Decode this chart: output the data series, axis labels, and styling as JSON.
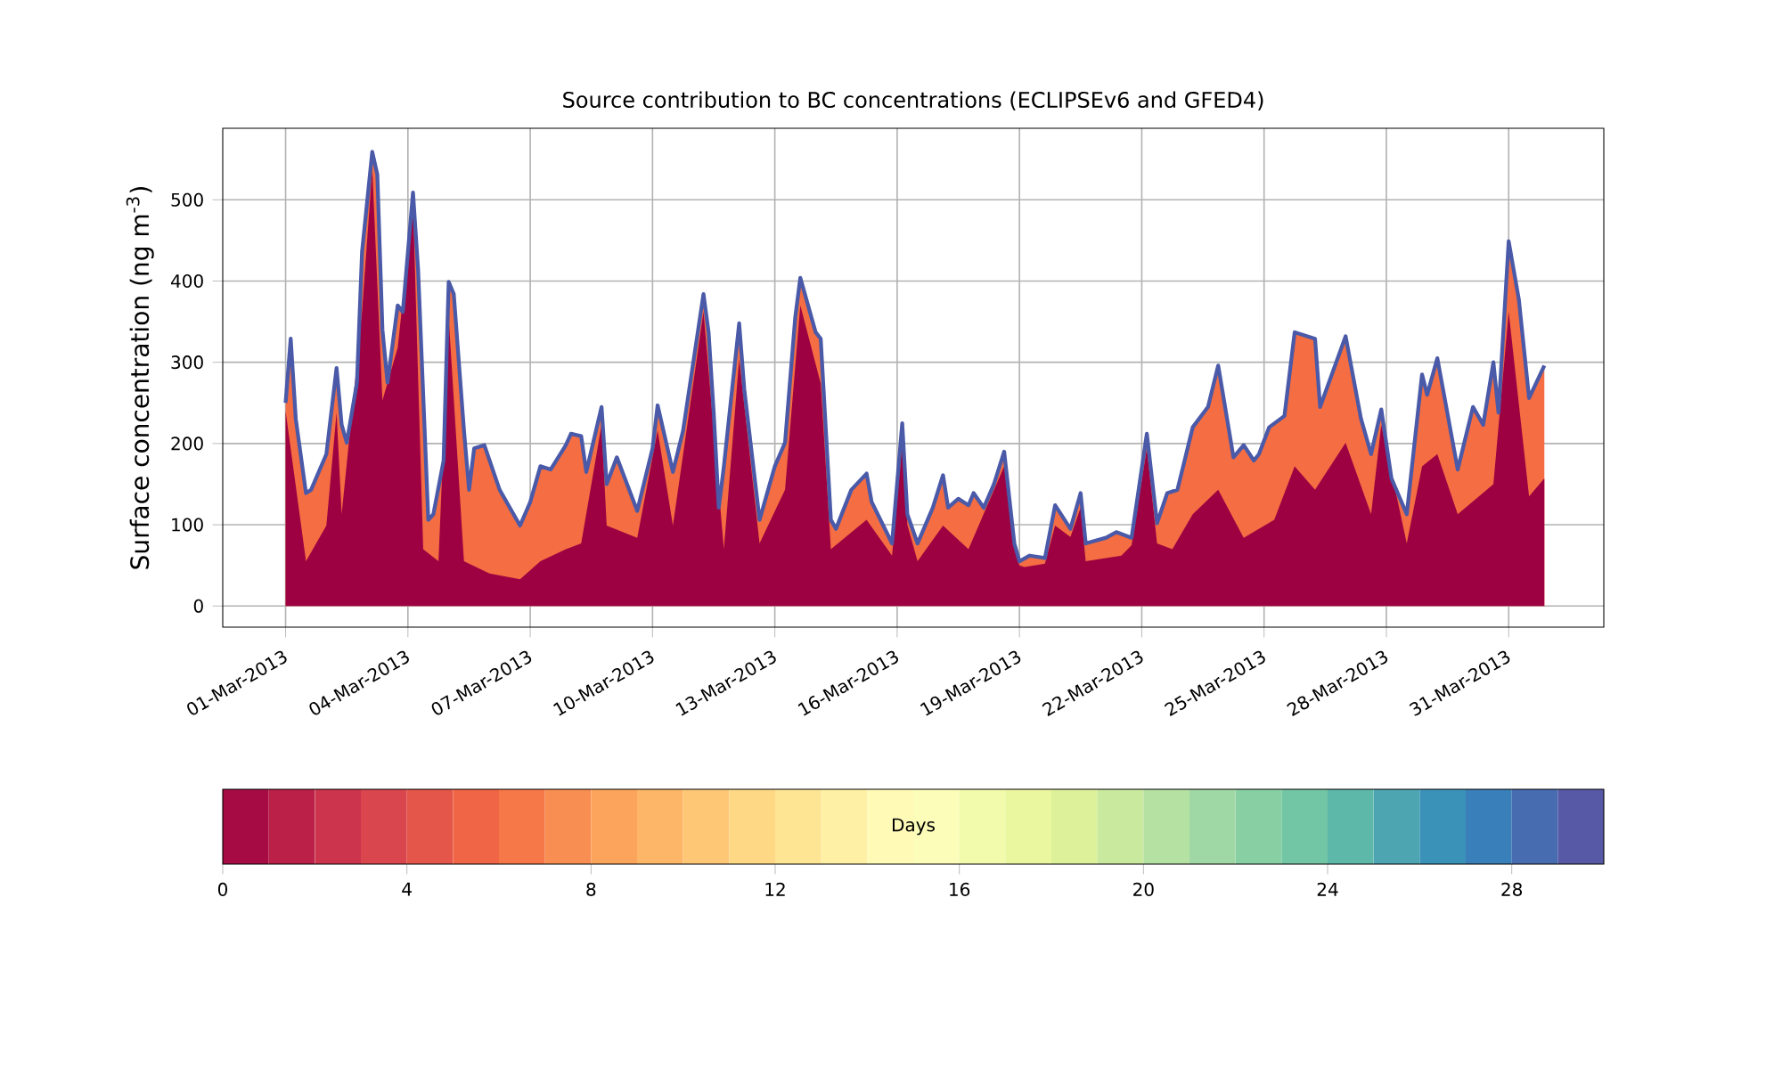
{
  "chart_data": {
    "type": "area",
    "title": "Source contribution to BC concentrations (ECLIPSEv6 and GFED4)",
    "ylabel": "Surface concentration (ng m$^{-3}$)",
    "xlim": [
      "2013-02-27T11:00",
      "2013-04-02T08:00"
    ],
    "xticks": [
      {
        "value": "2013-03-01",
        "label": "01-Mar-2013"
      },
      {
        "value": "2013-03-04",
        "label": "04-Mar-2013"
      },
      {
        "value": "2013-03-07",
        "label": "07-Mar-2013"
      },
      {
        "value": "2013-03-10",
        "label": "10-Mar-2013"
      },
      {
        "value": "2013-03-13",
        "label": "13-Mar-2013"
      },
      {
        "value": "2013-03-16",
        "label": "16-Mar-2013"
      },
      {
        "value": "2013-03-19",
        "label": "19-Mar-2013"
      },
      {
        "value": "2013-03-22",
        "label": "22-Mar-2013"
      },
      {
        "value": "2013-03-25",
        "label": "25-Mar-2013"
      },
      {
        "value": "2013-03-28",
        "label": "28-Mar-2013"
      },
      {
        "value": "2013-03-31",
        "label": "31-Mar-2013"
      }
    ],
    "ylim": [
      -26,
      588
    ],
    "yticks": [
      0,
      100,
      200,
      300,
      400,
      500
    ],
    "grid": true,
    "clabel": "Days",
    "clim": [
      0,
      30
    ],
    "cticks": [
      0,
      4,
      8,
      12,
      16,
      20,
      24,
      28
    ],
    "series": [
      {
        "color": "#f46d43",
        "x": [
          "2013-03-01T00:00",
          "2013-03-01T03:00",
          "2013-03-01T06:00",
          "2013-03-01T12:00",
          "2013-03-01T15:00",
          "2013-03-02T00:00",
          "2013-03-02T06:00",
          "2013-03-02T09:00",
          "2013-03-02T12:00",
          "2013-03-02T18:00",
          "2013-03-02T21:00",
          "2013-03-03T03:00",
          "2013-03-03T06:00",
          "2013-03-03T09:00",
          "2013-03-03T12:00",
          "2013-03-03T18:00",
          "2013-03-03T21:00",
          "2013-03-04T03:00",
          "2013-03-04T06:00",
          "2013-03-04T12:00",
          "2013-03-04T15:00",
          "2013-03-04T21:00",
          "2013-03-05T00:00",
          "2013-03-05T03:00",
          "2013-03-05T09:00",
          "2013-03-05T12:00",
          "2013-03-05T15:00",
          "2013-03-05T21:00",
          "2013-03-06T06:00",
          "2013-03-06T18:00",
          "2013-03-07T00:00",
          "2013-03-07T06:00",
          "2013-03-07T12:00",
          "2013-03-07T21:00",
          "2013-03-08T00:00",
          "2013-03-08T06:00",
          "2013-03-08T09:00",
          "2013-03-08T18:00",
          "2013-03-08T21:00",
          "2013-03-09T03:00",
          "2013-03-09T15:00",
          "2013-03-10T00:00",
          "2013-03-10T03:00",
          "2013-03-10T12:00",
          "2013-03-10T18:00",
          "2013-03-11T06:00",
          "2013-03-11T09:00",
          "2013-03-11T12:00",
          "2013-03-11T15:00",
          "2013-03-11T18:00",
          "2013-03-12T03:00",
          "2013-03-12T06:00",
          "2013-03-12T15:00",
          "2013-03-13T00:00",
          "2013-03-13T06:00",
          "2013-03-13T12:00",
          "2013-03-13T15:00",
          "2013-03-14T00:00",
          "2013-03-14T03:00",
          "2013-03-14T09:00",
          "2013-03-14T12:00",
          "2013-03-14T21:00",
          "2013-03-15T06:00",
          "2013-03-15T09:00",
          "2013-03-15T21:00",
          "2013-03-16T03:00",
          "2013-03-16T06:00",
          "2013-03-16T12:00",
          "2013-03-16T21:00",
          "2013-03-17T03:00",
          "2013-03-17T06:00",
          "2013-03-17T12:00",
          "2013-03-17T18:00",
          "2013-03-17T21:00",
          "2013-03-18T03:00",
          "2013-03-18T09:00",
          "2013-03-18T15:00",
          "2013-03-18T21:00",
          "2013-03-19T00:00",
          "2013-03-19T06:00",
          "2013-03-19T15:00",
          "2013-03-19T21:00",
          "2013-03-20T06:00",
          "2013-03-20T12:00",
          "2013-03-20T15:00",
          "2013-03-21T03:00",
          "2013-03-21T09:00",
          "2013-03-21T18:00",
          "2013-03-22T03:00",
          "2013-03-22T09:00",
          "2013-03-22T15:00",
          "2013-03-22T21:00",
          "2013-03-23T06:00",
          "2013-03-23T15:00",
          "2013-03-23T21:00",
          "2013-03-24T06:00",
          "2013-03-24T12:00",
          "2013-03-24T18:00",
          "2013-03-24T21:00",
          "2013-03-25T03:00",
          "2013-03-25T12:00",
          "2013-03-25T18:00",
          "2013-03-26T06:00",
          "2013-03-26T09:00",
          "2013-03-27T00:00",
          "2013-03-27T09:00",
          "2013-03-27T15:00",
          "2013-03-27T21:00",
          "2013-03-28T03:00",
          "2013-03-28T12:00",
          "2013-03-28T21:00",
          "2013-03-29T00:00",
          "2013-03-29T06:00",
          "2013-03-29T18:00",
          "2013-03-30T03:00",
          "2013-03-30T09:00",
          "2013-03-30T15:00",
          "2013-03-30T18:00",
          "2013-03-31T00:00",
          "2013-03-31T06:00",
          "2013-03-31T12:00",
          "2013-03-31T21:00"
        ],
        "values": [
          250,
          329,
          230,
          139,
          143,
          187,
          293,
          223,
          201,
          275,
          436,
          559,
          531,
          340,
          275,
          370,
          362,
          509,
          414,
          106,
          113,
          179,
          399,
          384,
          216,
          143,
          194,
          198,
          143,
          99,
          128,
          172,
          168,
          198,
          212,
          209,
          165,
          245,
          150,
          183,
          117,
          194,
          247,
          165,
          216,
          384,
          337,
          238,
          121,
          172,
          348,
          267,
          106,
          172,
          201,
          355,
          404,
          337,
          329,
          106,
          95,
          143,
          163,
          128,
          77,
          225,
          113,
          77,
          121,
          161,
          121,
          132,
          124,
          139,
          121,
          150,
          190,
          77,
          55,
          62,
          59,
          124,
          95,
          139,
          77,
          84,
          91,
          84,
          212,
          102,
          139,
          143,
          220,
          245,
          296,
          183,
          198,
          179,
          187,
          220,
          234,
          337,
          329,
          245,
          332,
          231,
          187,
          242,
          157,
          113,
          285,
          260,
          305,
          168,
          245,
          223,
          300,
          238,
          449,
          377,
          256,
          296
        ]
      },
      {
        "color": "#9e0142",
        "x": [
          "2013-03-01T00:00",
          "2013-03-01T12:00",
          "2013-03-02T00:00",
          "2013-03-02T06:00",
          "2013-03-02T09:00",
          "2013-03-02T21:00",
          "2013-03-03T03:00",
          "2013-03-03T09:00",
          "2013-03-03T18:00",
          "2013-03-04T03:00",
          "2013-03-04T09:00",
          "2013-03-04T18:00",
          "2013-03-05T00:00",
          "2013-03-05T09:00",
          "2013-03-06T00:00",
          "2013-03-06T18:00",
          "2013-03-07T06:00",
          "2013-03-07T21:00",
          "2013-03-08T06:00",
          "2013-03-08T18:00",
          "2013-03-08T21:00",
          "2013-03-09T15:00",
          "2013-03-10T03:00",
          "2013-03-10T12:00",
          "2013-03-11T06:00",
          "2013-03-11T18:00",
          "2013-03-12T03:00",
          "2013-03-12T15:00",
          "2013-03-13T06:00",
          "2013-03-13T15:00",
          "2013-03-14T03:00",
          "2013-03-14T09:00",
          "2013-03-15T06:00",
          "2013-03-15T21:00",
          "2013-03-16T03:00",
          "2013-03-16T06:00",
          "2013-03-16T12:00",
          "2013-03-17T03:00",
          "2013-03-17T18:00",
          "2013-03-18T15:00",
          "2013-03-18T21:00",
          "2013-03-19T00:00",
          "2013-03-19T03:00",
          "2013-03-19T15:00",
          "2013-03-19T21:00",
          "2013-03-20T06:00",
          "2013-03-20T12:00",
          "2013-03-20T15:00",
          "2013-03-21T12:00",
          "2013-03-21T18:00",
          "2013-03-22T03:00",
          "2013-03-22T09:00",
          "2013-03-22T18:00",
          "2013-03-23T06:00",
          "2013-03-23T21:00",
          "2013-03-24T12:00",
          "2013-03-25T06:00",
          "2013-03-25T18:00",
          "2013-03-26T06:00",
          "2013-03-27T00:00",
          "2013-03-27T15:00",
          "2013-03-27T21:00",
          "2013-03-28T12:00",
          "2013-03-28T21:00",
          "2013-03-29T06:00",
          "2013-03-29T18:00",
          "2013-03-30T15:00",
          "2013-03-31T00:00",
          "2013-03-31T12:00",
          "2013-03-31T21:00"
        ],
        "values": [
          240,
          55,
          99,
          238,
          113,
          362,
          538,
          253,
          318,
          494,
          70,
          55,
          355,
          55,
          40,
          33,
          55,
          70,
          77,
          223,
          99,
          84,
          216,
          99,
          362,
          70,
          304,
          77,
          143,
          370,
          274,
          70,
          106,
          62,
          201,
          100,
          55,
          99,
          70,
          172,
          70,
          50,
          48,
          52,
          99,
          85,
          121,
          55,
          62,
          75,
          194,
          77,
          70,
          113,
          143,
          84,
          106,
          172,
          143,
          201,
          113,
          223,
          77,
          172,
          187,
          113,
          150,
          362,
          135,
          157
        ]
      },
      {
        "type": "line",
        "color": "#4a5aa8",
        "x": [
          "2013-03-01T00:00",
          "2013-03-01T03:00",
          "2013-03-01T06:00",
          "2013-03-01T12:00",
          "2013-03-01T15:00",
          "2013-03-02T00:00",
          "2013-03-02T06:00",
          "2013-03-02T09:00",
          "2013-03-02T12:00",
          "2013-03-02T18:00",
          "2013-03-02T21:00",
          "2013-03-03T03:00",
          "2013-03-03T06:00",
          "2013-03-03T09:00",
          "2013-03-03T12:00",
          "2013-03-03T18:00",
          "2013-03-03T21:00",
          "2013-03-04T03:00",
          "2013-03-04T06:00",
          "2013-03-04T12:00",
          "2013-03-04T15:00",
          "2013-03-04T21:00",
          "2013-03-05T00:00",
          "2013-03-05T03:00",
          "2013-03-05T09:00",
          "2013-03-05T12:00",
          "2013-03-05T15:00",
          "2013-03-05T21:00",
          "2013-03-06T06:00",
          "2013-03-06T18:00",
          "2013-03-07T00:00",
          "2013-03-07T06:00",
          "2013-03-07T12:00",
          "2013-03-07T21:00",
          "2013-03-08T00:00",
          "2013-03-08T06:00",
          "2013-03-08T09:00",
          "2013-03-08T18:00",
          "2013-03-08T21:00",
          "2013-03-09T03:00",
          "2013-03-09T15:00",
          "2013-03-10T00:00",
          "2013-03-10T03:00",
          "2013-03-10T12:00",
          "2013-03-10T18:00",
          "2013-03-11T06:00",
          "2013-03-11T09:00",
          "2013-03-11T12:00",
          "2013-03-11T15:00",
          "2013-03-11T18:00",
          "2013-03-12T03:00",
          "2013-03-12T06:00",
          "2013-03-12T15:00",
          "2013-03-13T00:00",
          "2013-03-13T06:00",
          "2013-03-13T12:00",
          "2013-03-13T15:00",
          "2013-03-14T00:00",
          "2013-03-14T03:00",
          "2013-03-14T09:00",
          "2013-03-14T12:00",
          "2013-03-14T21:00",
          "2013-03-15T06:00",
          "2013-03-15T09:00",
          "2013-03-15T21:00",
          "2013-03-16T03:00",
          "2013-03-16T06:00",
          "2013-03-16T12:00",
          "2013-03-16T21:00",
          "2013-03-17T03:00",
          "2013-03-17T06:00",
          "2013-03-17T12:00",
          "2013-03-17T18:00",
          "2013-03-17T21:00",
          "2013-03-18T03:00",
          "2013-03-18T09:00",
          "2013-03-18T15:00",
          "2013-03-18T21:00",
          "2013-03-19T00:00",
          "2013-03-19T06:00",
          "2013-03-19T15:00",
          "2013-03-19T21:00",
          "2013-03-20T06:00",
          "2013-03-20T12:00",
          "2013-03-20T15:00",
          "2013-03-21T03:00",
          "2013-03-21T09:00",
          "2013-03-21T18:00",
          "2013-03-22T03:00",
          "2013-03-22T09:00",
          "2013-03-22T15:00",
          "2013-03-22T21:00",
          "2013-03-23T06:00",
          "2013-03-23T15:00",
          "2013-03-23T21:00",
          "2013-03-24T06:00",
          "2013-03-24T12:00",
          "2013-03-24T18:00",
          "2013-03-24T21:00",
          "2013-03-25T03:00",
          "2013-03-25T12:00",
          "2013-03-25T18:00",
          "2013-03-26T06:00",
          "2013-03-26T09:00",
          "2013-03-27T00:00",
          "2013-03-27T09:00",
          "2013-03-27T15:00",
          "2013-03-27T21:00",
          "2013-03-28T03:00",
          "2013-03-28T12:00",
          "2013-03-28T21:00",
          "2013-03-29T00:00",
          "2013-03-29T06:00",
          "2013-03-29T18:00",
          "2013-03-30T03:00",
          "2013-03-30T09:00",
          "2013-03-30T15:00",
          "2013-03-30T18:00",
          "2013-03-31T00:00",
          "2013-03-31T06:00",
          "2013-03-31T12:00",
          "2013-03-31T21:00"
        ],
        "values": [
          250,
          329,
          230,
          139,
          143,
          187,
          293,
          223,
          201,
          275,
          436,
          559,
          531,
          340,
          275,
          370,
          362,
          509,
          414,
          106,
          113,
          179,
          399,
          384,
          216,
          143,
          194,
          198,
          143,
          99,
          128,
          172,
          168,
          198,
          212,
          209,
          165,
          245,
          150,
          183,
          117,
          194,
          247,
          165,
          216,
          384,
          337,
          238,
          121,
          172,
          348,
          267,
          106,
          172,
          201,
          355,
          404,
          337,
          329,
          106,
          95,
          143,
          163,
          128,
          77,
          225,
          113,
          77,
          121,
          161,
          121,
          132,
          124,
          139,
          121,
          150,
          190,
          77,
          55,
          62,
          59,
          124,
          95,
          139,
          77,
          84,
          91,
          84,
          212,
          102,
          139,
          143,
          220,
          245,
          296,
          183,
          198,
          179,
          187,
          220,
          234,
          337,
          329,
          245,
          332,
          231,
          187,
          242,
          157,
          113,
          285,
          260,
          305,
          168,
          245,
          223,
          300,
          238,
          449,
          377,
          256,
          296
        ]
      }
    ]
  }
}
